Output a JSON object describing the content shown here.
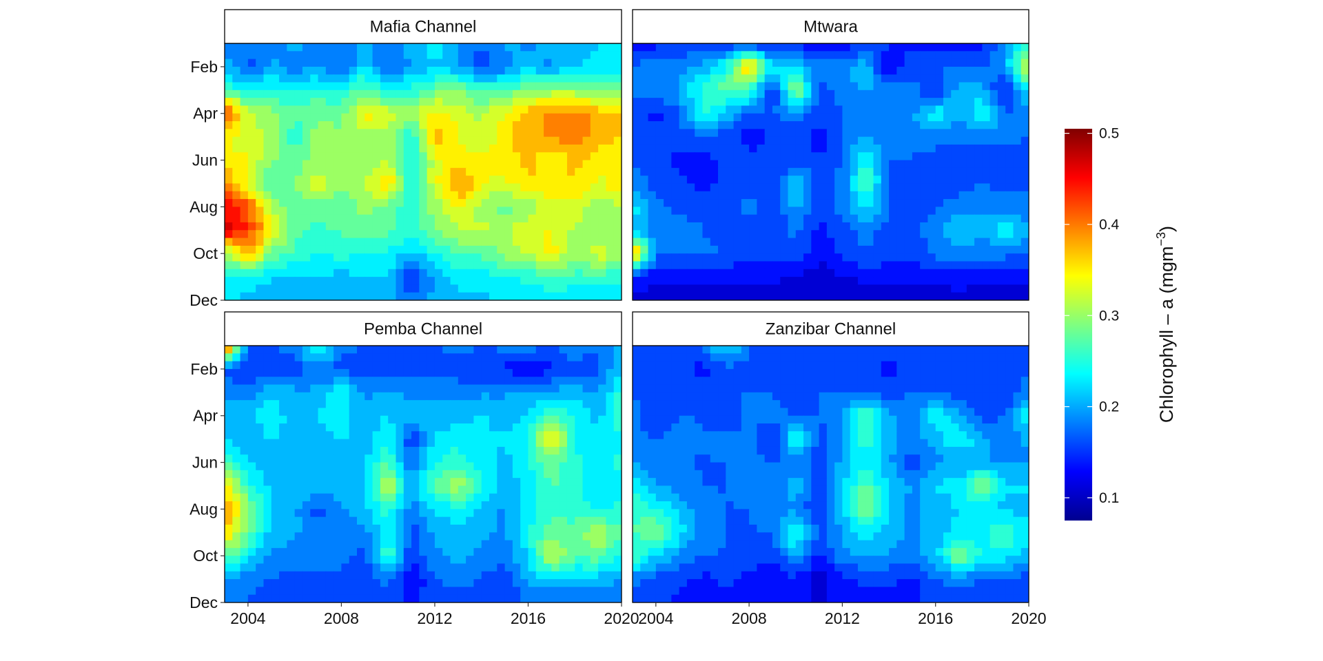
{
  "chart_data": {
    "type": "heatmap",
    "facets": [
      "Mafia Channel",
      "Mtwara",
      "Pemba Channel",
      "Zanzibar Channel"
    ],
    "x_ticks": [
      "2004",
      "2008",
      "2012",
      "2016",
      "2020"
    ],
    "y_ticks": [
      "Feb",
      "Apr",
      "Jun",
      "Aug",
      "Oct",
      "Dec"
    ],
    "xlim": [
      2003,
      2020
    ],
    "ylim": [
      "Jan",
      "Dec"
    ],
    "colorbar": {
      "title": "Chlorophyll – a (mgm",
      "title_sup": "−3",
      "title_close": ")",
      "ticks": [
        "0.1",
        "0.2",
        "0.3",
        "0.4",
        "0.5"
      ],
      "range": [
        0.075,
        0.505
      ],
      "palette": "jet"
    },
    "series": [
      {
        "name": "Mafia Channel",
        "x": [
          2003,
          2004,
          2005,
          2006,
          2007,
          2008,
          2009,
          2010,
          2011,
          2012,
          2013,
          2014,
          2015,
          2016,
          2017,
          2018,
          2019,
          2020
        ],
        "rows": [
          [
            0.17,
            0.19,
            0.18,
            0.2,
            0.19,
            0.18,
            0.2,
            0.19,
            0.2,
            0.24,
            0.19,
            0.17,
            0.2,
            0.19,
            0.2,
            0.2,
            0.22,
            0.23
          ],
          [
            0.21,
            0.16,
            0.2,
            0.18,
            0.19,
            0.17,
            0.22,
            0.16,
            0.2,
            0.21,
            0.2,
            0.16,
            0.18,
            0.21,
            0.19,
            0.22,
            0.22,
            0.23
          ],
          [
            0.27,
            0.23,
            0.25,
            0.24,
            0.25,
            0.24,
            0.28,
            0.23,
            0.25,
            0.28,
            0.29,
            0.26,
            0.27,
            0.29,
            0.3,
            0.3,
            0.28,
            0.28
          ],
          [
            0.44,
            0.32,
            0.3,
            0.27,
            0.29,
            0.28,
            0.35,
            0.33,
            0.3,
            0.35,
            0.33,
            0.31,
            0.34,
            0.38,
            0.39,
            0.4,
            0.38,
            0.36
          ],
          [
            0.34,
            0.32,
            0.31,
            0.25,
            0.3,
            0.29,
            0.3,
            0.31,
            0.24,
            0.38,
            0.34,
            0.31,
            0.35,
            0.38,
            0.39,
            0.41,
            0.37,
            0.36
          ],
          [
            0.35,
            0.34,
            0.29,
            0.28,
            0.3,
            0.29,
            0.3,
            0.31,
            0.23,
            0.33,
            0.35,
            0.35,
            0.35,
            0.37,
            0.33,
            0.37,
            0.35,
            0.34
          ],
          [
            0.39,
            0.33,
            0.27,
            0.29,
            0.33,
            0.3,
            0.31,
            0.37,
            0.24,
            0.33,
            0.4,
            0.34,
            0.33,
            0.36,
            0.36,
            0.36,
            0.33,
            0.36
          ],
          [
            0.45,
            0.42,
            0.31,
            0.27,
            0.28,
            0.27,
            0.3,
            0.28,
            0.25,
            0.3,
            0.34,
            0.3,
            0.28,
            0.3,
            0.32,
            0.33,
            0.3,
            0.31
          ],
          [
            0.47,
            0.43,
            0.35,
            0.27,
            0.26,
            0.27,
            0.28,
            0.27,
            0.25,
            0.29,
            0.31,
            0.32,
            0.31,
            0.33,
            0.34,
            0.31,
            0.29,
            0.31
          ],
          [
            0.29,
            0.39,
            0.28,
            0.26,
            0.24,
            0.25,
            0.24,
            0.24,
            0.21,
            0.24,
            0.27,
            0.27,
            0.3,
            0.32,
            0.35,
            0.29,
            0.33,
            0.3
          ],
          [
            0.23,
            0.24,
            0.22,
            0.21,
            0.22,
            0.21,
            0.22,
            0.22,
            0.14,
            0.2,
            0.23,
            0.23,
            0.24,
            0.25,
            0.27,
            0.26,
            0.26,
            0.25
          ],
          [
            0.22,
            0.21,
            0.2,
            0.19,
            0.21,
            0.2,
            0.2,
            0.21,
            0.18,
            0.2,
            0.21,
            0.21,
            0.22,
            0.22,
            0.22,
            0.22,
            0.22,
            0.22
          ]
        ]
      },
      {
        "name": "Mtwara",
        "x": [
          2003,
          2004,
          2005,
          2006,
          2007,
          2008,
          2009,
          2010,
          2011,
          2012,
          2013,
          2014,
          2015,
          2016,
          2017,
          2018,
          2019,
          2020
        ],
        "rows": [
          [
            0.13,
            0.14,
            0.15,
            0.16,
            0.15,
            0.14,
            0.13,
            0.14,
            0.12,
            0.13,
            0.15,
            0.15,
            0.14,
            0.14,
            0.13,
            0.14,
            0.18,
            0.25
          ],
          [
            0.17,
            0.19,
            0.18,
            0.2,
            0.24,
            0.38,
            0.23,
            0.22,
            0.18,
            0.19,
            0.21,
            0.12,
            0.16,
            0.17,
            0.17,
            0.17,
            0.2,
            0.35
          ],
          [
            0.18,
            0.18,
            0.2,
            0.25,
            0.28,
            0.26,
            0.14,
            0.31,
            0.16,
            0.18,
            0.2,
            0.18,
            0.18,
            0.14,
            0.21,
            0.2,
            0.13,
            0.24
          ],
          [
            0.15,
            0.14,
            0.17,
            0.25,
            0.21,
            0.17,
            0.17,
            0.18,
            0.16,
            0.17,
            0.17,
            0.17,
            0.19,
            0.24,
            0.19,
            0.25,
            0.17,
            0.18
          ],
          [
            0.17,
            0.15,
            0.16,
            0.16,
            0.16,
            0.13,
            0.15,
            0.16,
            0.13,
            0.17,
            0.19,
            0.18,
            0.18,
            0.18,
            0.18,
            0.18,
            0.18,
            0.17
          ],
          [
            0.17,
            0.15,
            0.14,
            0.14,
            0.15,
            0.16,
            0.15,
            0.16,
            0.15,
            0.17,
            0.25,
            0.17,
            0.17,
            0.16,
            0.16,
            0.16,
            0.16,
            0.16
          ],
          [
            0.19,
            0.16,
            0.15,
            0.14,
            0.15,
            0.15,
            0.15,
            0.22,
            0.16,
            0.18,
            0.27,
            0.17,
            0.16,
            0.16,
            0.16,
            0.17,
            0.16,
            0.17
          ],
          [
            0.23,
            0.18,
            0.16,
            0.16,
            0.16,
            0.18,
            0.15,
            0.2,
            0.15,
            0.18,
            0.23,
            0.17,
            0.16,
            0.17,
            0.18,
            0.19,
            0.18,
            0.18
          ],
          [
            0.21,
            0.18,
            0.19,
            0.17,
            0.16,
            0.16,
            0.15,
            0.18,
            0.14,
            0.16,
            0.18,
            0.16,
            0.17,
            0.18,
            0.22,
            0.2,
            0.24,
            0.2
          ],
          [
            0.41,
            0.17,
            0.17,
            0.18,
            0.17,
            0.15,
            0.15,
            0.16,
            0.13,
            0.15,
            0.17,
            0.16,
            0.15,
            0.18,
            0.18,
            0.18,
            0.18,
            0.17
          ],
          [
            0.14,
            0.13,
            0.13,
            0.13,
            0.13,
            0.13,
            0.13,
            0.12,
            0.11,
            0.12,
            0.13,
            0.13,
            0.13,
            0.13,
            0.13,
            0.13,
            0.13,
            0.13
          ],
          [
            0.12,
            0.11,
            0.11,
            0.11,
            0.11,
            0.11,
            0.1,
            0.1,
            0.1,
            0.1,
            0.1,
            0.11,
            0.11,
            0.11,
            0.12,
            0.11,
            0.11,
            0.11
          ]
        ]
      },
      {
        "name": "Pemba Channel",
        "x": [
          2003,
          2004,
          2005,
          2006,
          2007,
          2008,
          2009,
          2010,
          2011,
          2012,
          2013,
          2014,
          2015,
          2016,
          2017,
          2018,
          2019,
          2020
        ],
        "rows": [
          [
            0.46,
            0.16,
            0.17,
            0.18,
            0.27,
            0.18,
            0.17,
            0.17,
            0.17,
            0.17,
            0.18,
            0.17,
            0.18,
            0.18,
            0.17,
            0.19,
            0.17,
            0.2
          ],
          [
            0.16,
            0.15,
            0.15,
            0.16,
            0.17,
            0.16,
            0.16,
            0.15,
            0.16,
            0.16,
            0.16,
            0.15,
            0.14,
            0.13,
            0.14,
            0.16,
            0.16,
            0.22
          ],
          [
            0.19,
            0.18,
            0.21,
            0.2,
            0.2,
            0.24,
            0.19,
            0.2,
            0.19,
            0.19,
            0.18,
            0.19,
            0.19,
            0.2,
            0.2,
            0.21,
            0.19,
            0.25
          ],
          [
            0.2,
            0.21,
            0.24,
            0.2,
            0.22,
            0.23,
            0.2,
            0.22,
            0.2,
            0.21,
            0.21,
            0.22,
            0.21,
            0.22,
            0.27,
            0.24,
            0.21,
            0.27
          ],
          [
            0.22,
            0.2,
            0.22,
            0.2,
            0.21,
            0.22,
            0.21,
            0.24,
            0.15,
            0.22,
            0.23,
            0.22,
            0.22,
            0.24,
            0.37,
            0.24,
            0.23,
            0.24
          ],
          [
            0.27,
            0.22,
            0.21,
            0.21,
            0.21,
            0.2,
            0.21,
            0.27,
            0.17,
            0.24,
            0.26,
            0.23,
            0.21,
            0.24,
            0.28,
            0.25,
            0.22,
            0.25
          ],
          [
            0.36,
            0.25,
            0.21,
            0.21,
            0.21,
            0.21,
            0.22,
            0.32,
            0.2,
            0.28,
            0.31,
            0.25,
            0.2,
            0.23,
            0.27,
            0.25,
            0.22,
            0.24
          ],
          [
            0.39,
            0.3,
            0.22,
            0.2,
            0.16,
            0.19,
            0.21,
            0.26,
            0.18,
            0.22,
            0.24,
            0.21,
            0.19,
            0.23,
            0.26,
            0.26,
            0.23,
            0.25
          ],
          [
            0.37,
            0.28,
            0.21,
            0.2,
            0.18,
            0.18,
            0.19,
            0.23,
            0.16,
            0.2,
            0.21,
            0.2,
            0.19,
            0.24,
            0.28,
            0.27,
            0.32,
            0.26
          ],
          [
            0.28,
            0.23,
            0.19,
            0.18,
            0.18,
            0.18,
            0.16,
            0.27,
            0.15,
            0.19,
            0.2,
            0.19,
            0.18,
            0.22,
            0.33,
            0.27,
            0.28,
            0.24
          ],
          [
            0.2,
            0.18,
            0.17,
            0.16,
            0.17,
            0.16,
            0.15,
            0.18,
            0.12,
            0.17,
            0.18,
            0.17,
            0.15,
            0.2,
            0.22,
            0.21,
            0.21,
            0.19
          ],
          [
            0.18,
            0.17,
            0.16,
            0.16,
            0.16,
            0.16,
            0.15,
            0.16,
            0.14,
            0.16,
            0.16,
            0.16,
            0.15,
            0.17,
            0.17,
            0.17,
            0.17,
            0.17
          ]
        ]
      },
      {
        "name": "Zanzibar Channel",
        "x": [
          2003,
          2004,
          2005,
          2006,
          2007,
          2008,
          2009,
          2010,
          2011,
          2012,
          2013,
          2014,
          2015,
          2016,
          2017,
          2018,
          2019,
          2020
        ],
        "rows": [
          [
            0.16,
            0.17,
            0.16,
            0.17,
            0.24,
            0.17,
            0.16,
            0.17,
            0.16,
            0.15,
            0.16,
            0.16,
            0.15,
            0.16,
            0.15,
            0.16,
            0.16,
            0.16
          ],
          [
            0.15,
            0.16,
            0.15,
            0.14,
            0.16,
            0.16,
            0.15,
            0.15,
            0.16,
            0.16,
            0.16,
            0.13,
            0.16,
            0.15,
            0.15,
            0.16,
            0.16,
            0.17
          ],
          [
            0.17,
            0.16,
            0.16,
            0.16,
            0.17,
            0.17,
            0.17,
            0.16,
            0.17,
            0.17,
            0.17,
            0.16,
            0.17,
            0.17,
            0.16,
            0.15,
            0.15,
            0.18
          ],
          [
            0.18,
            0.14,
            0.17,
            0.17,
            0.14,
            0.18,
            0.18,
            0.17,
            0.17,
            0.2,
            0.27,
            0.2,
            0.18,
            0.24,
            0.2,
            0.16,
            0.17,
            0.25
          ],
          [
            0.18,
            0.17,
            0.18,
            0.17,
            0.18,
            0.18,
            0.14,
            0.25,
            0.16,
            0.19,
            0.26,
            0.2,
            0.19,
            0.2,
            0.25,
            0.2,
            0.18,
            0.2
          ],
          [
            0.19,
            0.18,
            0.17,
            0.17,
            0.17,
            0.18,
            0.17,
            0.18,
            0.16,
            0.2,
            0.24,
            0.2,
            0.15,
            0.19,
            0.19,
            0.2,
            0.19,
            0.19
          ],
          [
            0.24,
            0.2,
            0.18,
            0.17,
            0.17,
            0.18,
            0.18,
            0.21,
            0.16,
            0.22,
            0.27,
            0.22,
            0.19,
            0.22,
            0.23,
            0.3,
            0.22,
            0.22
          ],
          [
            0.27,
            0.24,
            0.21,
            0.18,
            0.17,
            0.17,
            0.18,
            0.19,
            0.14,
            0.21,
            0.31,
            0.21,
            0.19,
            0.2,
            0.22,
            0.23,
            0.21,
            0.21
          ],
          [
            0.26,
            0.3,
            0.23,
            0.18,
            0.17,
            0.17,
            0.17,
            0.26,
            0.16,
            0.2,
            0.23,
            0.21,
            0.19,
            0.2,
            0.23,
            0.23,
            0.27,
            0.22
          ],
          [
            0.27,
            0.22,
            0.19,
            0.17,
            0.17,
            0.16,
            0.15,
            0.2,
            0.14,
            0.19,
            0.2,
            0.19,
            0.18,
            0.21,
            0.3,
            0.24,
            0.23,
            0.21
          ],
          [
            0.18,
            0.16,
            0.15,
            0.14,
            0.15,
            0.14,
            0.13,
            0.14,
            0.11,
            0.14,
            0.15,
            0.15,
            0.14,
            0.17,
            0.18,
            0.17,
            0.17,
            0.16
          ],
          [
            0.15,
            0.15,
            0.14,
            0.14,
            0.14,
            0.13,
            0.13,
            0.13,
            0.12,
            0.14,
            0.14,
            0.14,
            0.14,
            0.15,
            0.15,
            0.15,
            0.15,
            0.15
          ]
        ]
      }
    ]
  }
}
